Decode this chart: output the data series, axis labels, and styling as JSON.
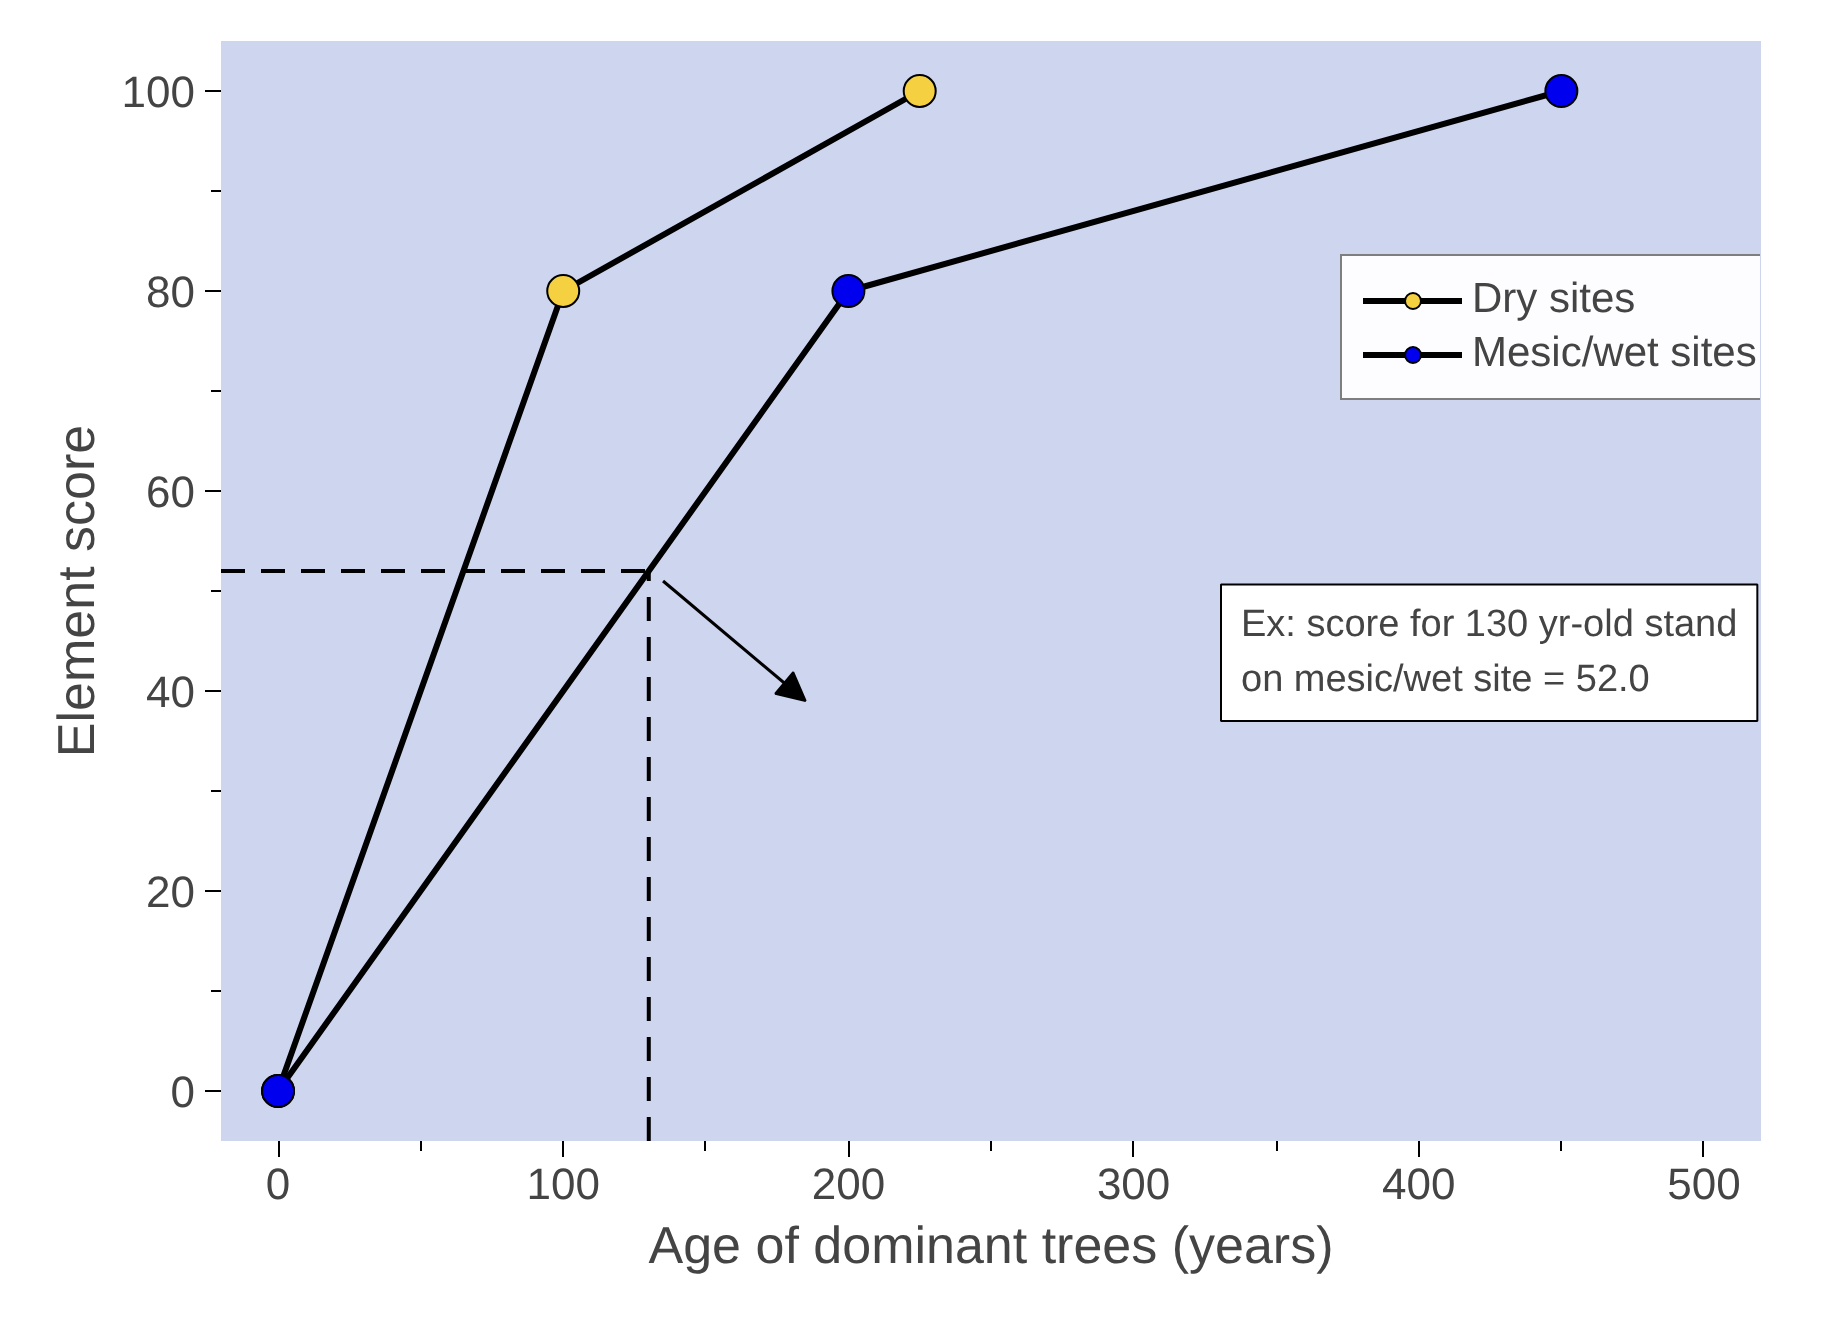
{
  "chart_data": {
    "type": "line",
    "xlabel": "Age of dominant trees (years)",
    "ylabel": "Element score",
    "series": [
      {
        "name": "Dry sites",
        "color": "#f5d040",
        "x": [
          0,
          100,
          225
        ],
        "values": [
          0,
          80,
          100
        ]
      },
      {
        "name": "Mesic/wet sites",
        "color": "#0000ee",
        "x": [
          0,
          200,
          450
        ],
        "values": [
          0,
          80,
          100
        ]
      }
    ],
    "xlim": [
      -20,
      520
    ],
    "ylim": [
      -5,
      105
    ],
    "xticks": [
      0,
      100,
      200,
      300,
      400,
      500
    ],
    "yticks": [
      0,
      20,
      40,
      60,
      80,
      100
    ],
    "ref_lines": [
      {
        "axis": "x",
        "value": 130,
        "line_style": "dashed",
        "color": "#000000"
      },
      {
        "axis": "y",
        "value": 52.0,
        "line_style": "dashed",
        "color": "#000000"
      }
    ],
    "annotations": [
      "Ex: score for 130 yr-old stand\non mesic/wet site = 52.0"
    ],
    "marker": "circle",
    "line_style": "solid",
    "grid": false,
    "legend": "top right"
  }
}
